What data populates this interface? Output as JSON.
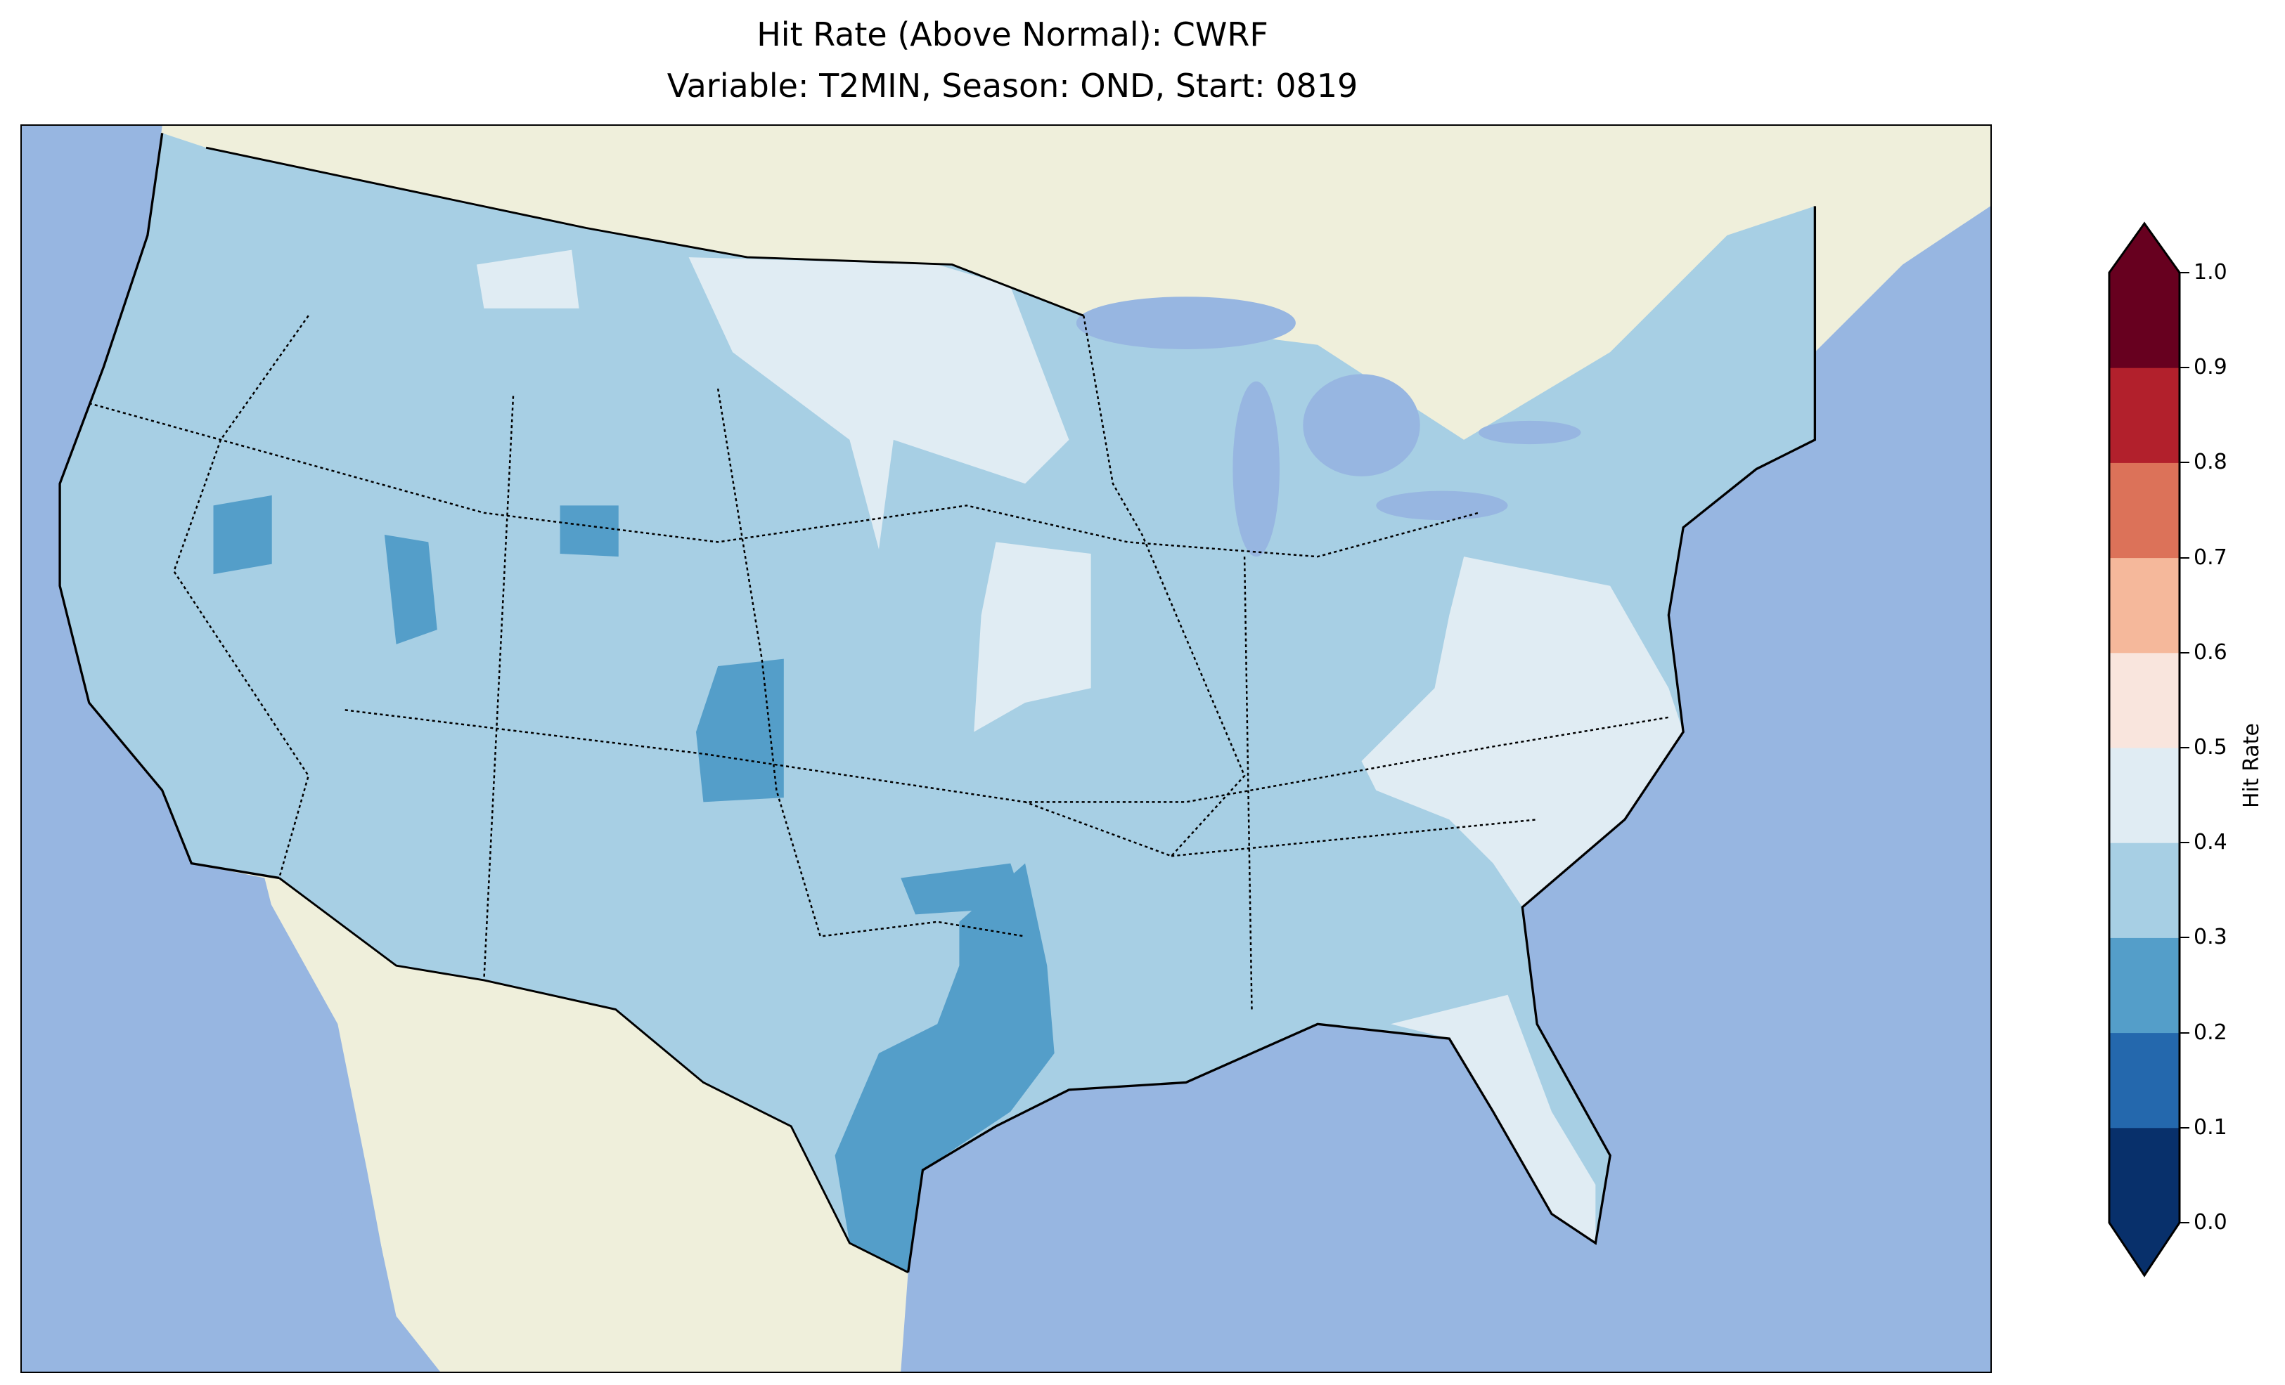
{
  "title": {
    "line1": "Hit Rate (Above Normal): CWRF",
    "line2": "Variable: T2MIN, Season: OND, Start: 0819"
  },
  "chart_data": {
    "type": "heatmap",
    "title": "Hit Rate (Above Normal): CWRF\nVariable: T2MIN, Season: OND, Start: 0819",
    "region": "Contiguous United States",
    "colorbar": {
      "label": "Hit Rate",
      "range": [
        0.0,
        1.0
      ],
      "extend": "both",
      "ticks": [
        "0.0",
        "0.1",
        "0.2",
        "0.3",
        "0.4",
        "0.5",
        "0.6",
        "0.7",
        "0.8",
        "0.9",
        "1.0"
      ],
      "colors": [
        "#08306b",
        "#2468ad",
        "#549ec9",
        "#a7cfe4",
        "#e0ecf3",
        "#f9e5dd",
        "#f5b89b",
        "#dc7259",
        "#b2202c",
        "#67001f"
      ]
    },
    "summary": {
      "dominant_bin": "0.3-0.4",
      "regions_0.4_0.5": [
        "Dakotas/Minnesota",
        "Iowa/Nebraska",
        "Virginia/Carolinas",
        "Florida",
        "Montana patch"
      ],
      "regions_0.2_0.3": [
        "Texas",
        "Colorado/New Mexico",
        "Oklahoma",
        "Nevada",
        "Utah",
        "Wyoming"
      ]
    },
    "colors": {
      "ocean": "#97b6e1",
      "land": "#efefdb"
    }
  }
}
